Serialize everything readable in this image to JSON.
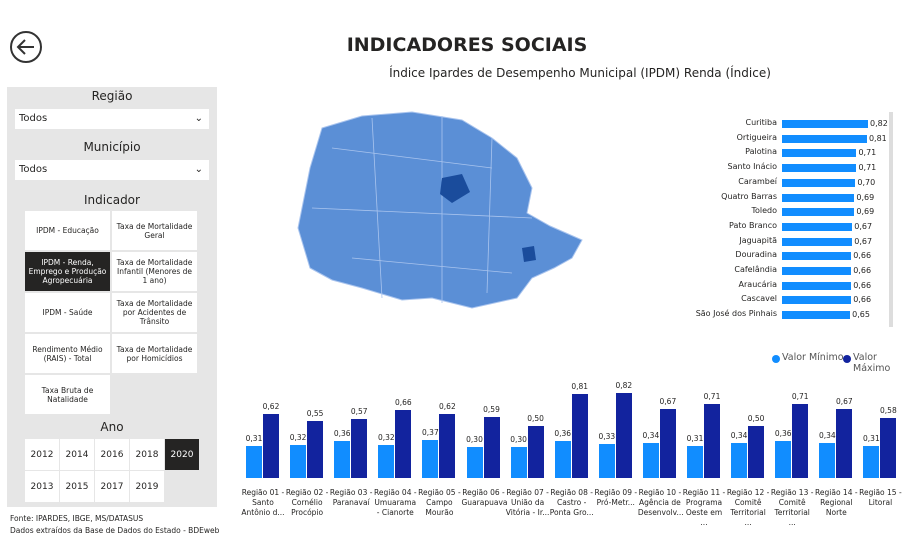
{
  "header": {
    "title": "INDICADORES SOCIAIS"
  },
  "filters": {
    "regiao": {
      "label": "Região",
      "value": "Todos"
    },
    "municipio": {
      "label": "Município",
      "value": "Todos"
    },
    "indicador": {
      "label": "Indicador",
      "selected": 2,
      "options": [
        "IPDM - Educação",
        "Taxa de Mortalidade Geral",
        "IPDM - Renda, Emprego e Produção Agropecuária",
        "Taxa de Mortalidade Infantil (Menores de 1 ano)",
        "IPDM - Saúde",
        "Taxa de Mortalidade por Acidentes de Trânsito",
        "Rendimento Médio (RAIS) - Total",
        "Taxa de Mortalidade por Homicídios",
        "Taxa Bruta de Natalidade"
      ]
    },
    "ano": {
      "label": "Ano",
      "selected": 4,
      "options": [
        "2012",
        "2014",
        "2016",
        "2018",
        "2020",
        "2013",
        "2015",
        "2017",
        "2019"
      ]
    }
  },
  "footer": [
    "Fonte: IPARDES, IBGE, MS/DATASUS",
    "Dados extraídos da Base de Dados do Estado - BDEweb"
  ],
  "chart_data": [
    {
      "type": "hbar",
      "title": "Índice Ipardes de Desempenho Municipal (IPDM) Renda (Índice)",
      "color": "#118dff",
      "categories": [
        "Curitiba",
        "Ortigueira",
        "Palotina",
        "Santo Inácio",
        "Carambeí",
        "Quatro Barras",
        "Toledo",
        "Pato Branco",
        "Jaguapitã",
        "Douradina",
        "Cafelândia",
        "Araucária",
        "Cascavel",
        "São José dos Pinhais"
      ],
      "values": [
        0.82,
        0.81,
        0.71,
        0.71,
        0.7,
        0.69,
        0.69,
        0.67,
        0.67,
        0.66,
        0.66,
        0.66,
        0.66,
        0.65
      ],
      "value_labels": [
        "0,82",
        "0,81",
        "0,71",
        "0,71",
        "0,70",
        "0,69",
        "0,69",
        "0,67",
        "0,67",
        "0,66",
        "0,66",
        "0,66",
        "0,66",
        "0,65"
      ]
    },
    {
      "type": "grouped-bar",
      "legend": "top-right",
      "categories": [
        "Região 01 - Santo Antônio d...",
        "Região 02 - Cornélio Procópio",
        "Região 03 - Paranavaí",
        "Região 04 - Umuarama - Cianorte",
        "Região 05 - Campo Mourão",
        "Região 06 - Guarapuava",
        "Região 07 - União da Vitória - Ir...",
        "Região 08 - Castro - Ponta Gro...",
        "Região 09 - Pró-Metr...",
        "Região 10 - Agência de Desenvolv...",
        "Região 11 - Programa Oeste em ...",
        "Região 12 - Comitê Territorial ...",
        "Região 13 - Comitê Territorial ...",
        "Região 14 - Regional Norte",
        "Região 15 - Litoral"
      ],
      "series": [
        {
          "name": "Valor Mínimo",
          "color": "#118dff",
          "values": [
            0.31,
            0.32,
            0.36,
            0.32,
            0.37,
            0.3,
            0.3,
            0.36,
            0.33,
            0.34,
            0.31,
            0.34,
            0.36,
            0.34,
            0.31
          ],
          "value_labels": [
            "0,31",
            "0,32",
            "0,36",
            "0,32",
            "0,37",
            "0,30",
            "0,30",
            "0,36",
            "0,33",
            "0,34",
            "0,31",
            "0,34",
            "0,36",
            "0,34",
            "0,31"
          ]
        },
        {
          "name": "Valor Máximo",
          "color": "#12239e",
          "values": [
            0.62,
            0.55,
            0.57,
            0.66,
            0.62,
            0.59,
            0.5,
            0.81,
            0.82,
            0.67,
            0.71,
            0.5,
            0.71,
            0.67,
            0.58
          ],
          "value_labels": [
            "0,62",
            "0,55",
            "0,57",
            "0,66",
            "0,62",
            "0,59",
            "0,50",
            "0,81",
            "0,82",
            "0,67",
            "0,71",
            "0,50",
            "0,71",
            "0,67",
            "0,58"
          ]
        }
      ]
    }
  ]
}
